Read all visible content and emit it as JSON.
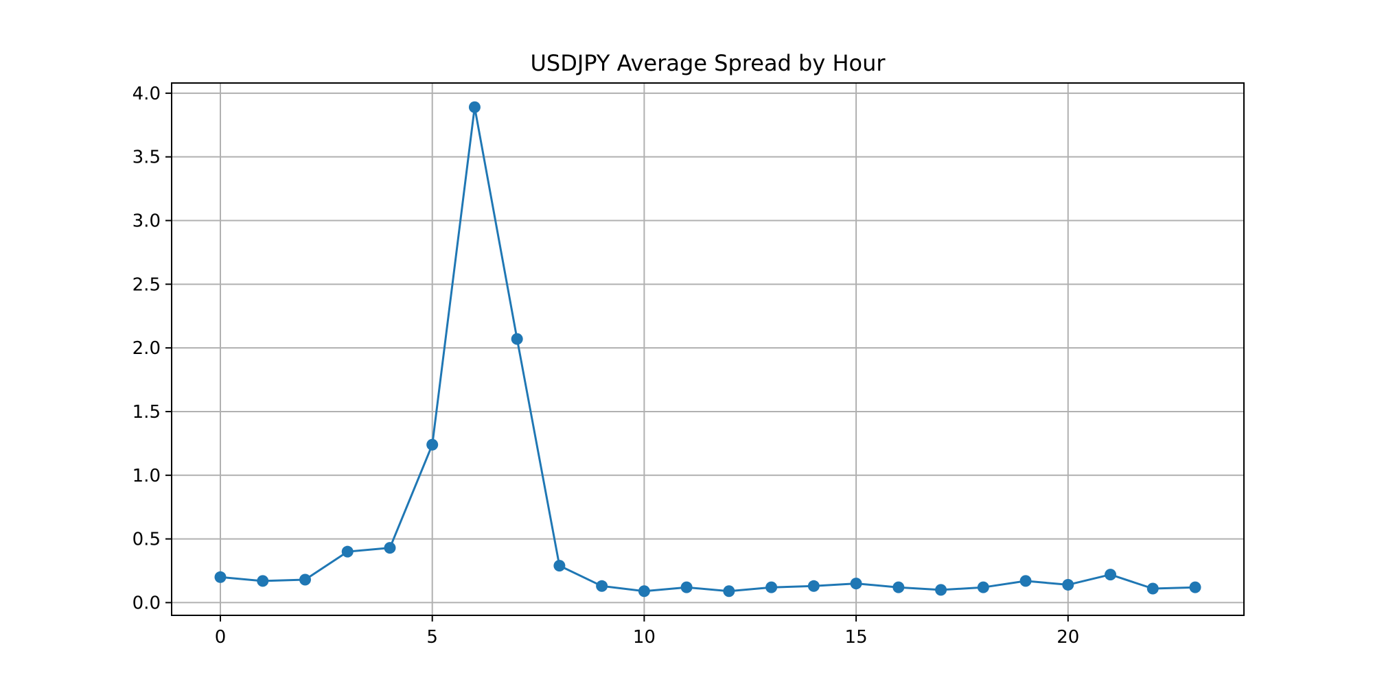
{
  "chart_data": {
    "type": "line",
    "title": "USDJPY Average Spread by Hour",
    "xlabel": "",
    "ylabel": "",
    "x": [
      0,
      1,
      2,
      3,
      4,
      5,
      6,
      7,
      8,
      9,
      10,
      11,
      12,
      13,
      14,
      15,
      16,
      17,
      18,
      19,
      20,
      21,
      22,
      23
    ],
    "series": [
      {
        "values": [
          0.2,
          0.17,
          0.18,
          0.4,
          0.43,
          1.24,
          3.89,
          2.07,
          0.29,
          0.13,
          0.09,
          0.12,
          0.09,
          0.12,
          0.13,
          0.15,
          0.12,
          0.1,
          0.12,
          0.17,
          0.14,
          0.22,
          0.11,
          0.12
        ],
        "color": "#1f77b4",
        "marker": "circle"
      }
    ],
    "xlim": [
      -1.15,
      24.15
    ],
    "ylim": [
      -0.1,
      4.08
    ],
    "xticks": [
      0,
      5,
      10,
      15,
      20
    ],
    "yticks": [
      0.0,
      0.5,
      1.0,
      1.5,
      2.0,
      2.5,
      3.0,
      3.5,
      4.0
    ],
    "ytick_labels": [
      "0.0",
      "0.5",
      "1.0",
      "1.5",
      "2.0",
      "2.5",
      "3.0",
      "3.5",
      "4.0"
    ],
    "grid": true,
    "legend": "none"
  }
}
